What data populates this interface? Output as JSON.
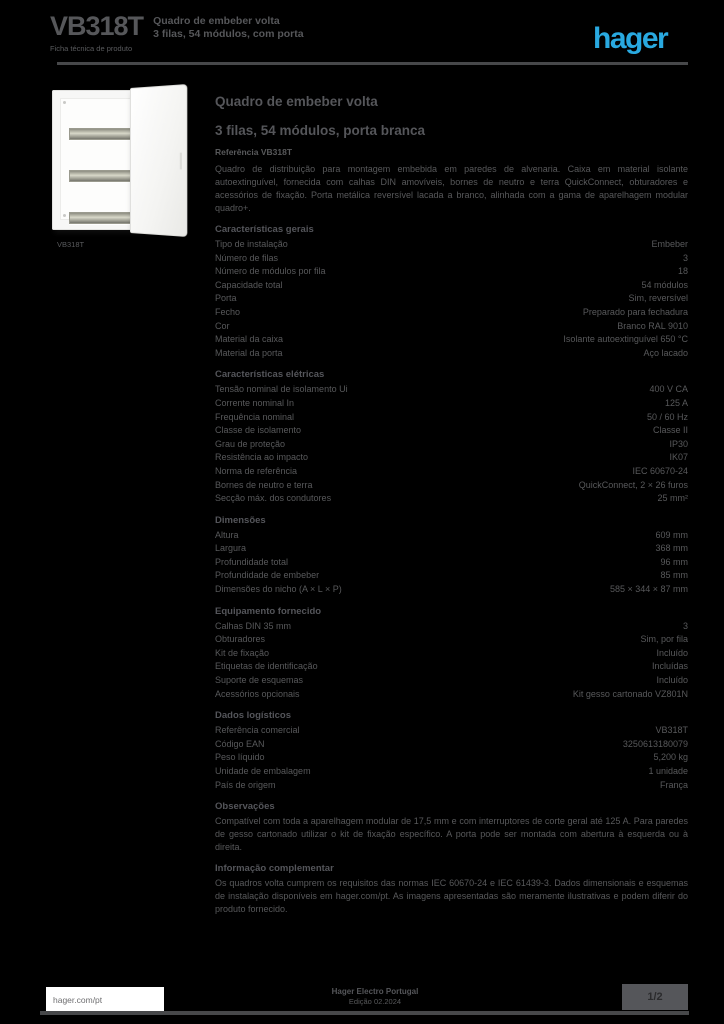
{
  "header": {
    "ref": "VB318T",
    "subtitle_line1": "Quadro de embeber volta",
    "subtitle_line2": "3 filas, 54 módulos, com porta",
    "doc_type": "Ficha técnica de produto"
  },
  "logo": {
    "text": "hager",
    "color": "#29a9e0"
  },
  "photo": {
    "caption": "VB318T"
  },
  "product": {
    "title": "Quadro de embeber volta",
    "title2": "3 filas, 54 módulos, porta branca",
    "ref_line": "Referência VB318T",
    "description": "Quadro de distribuição para montagem embebida em paredes de alvenaria. Caixa em material isolante autoextinguível, fornecida com calhas DIN amovíveis, bornes de neutro e terra QuickConnect, obturadores e acessórios de fixação. Porta metálica reversível lacada a branco, alinhada com a gama de aparelhagem modular quadro+."
  },
  "sections": [
    {
      "heading": "Características gerais",
      "rows": [
        {
          "label": "Tipo de instalação",
          "value": "Embeber"
        },
        {
          "label": "Número de filas",
          "value": "3"
        },
        {
          "label": "Número de módulos por fila",
          "value": "18"
        },
        {
          "label": "Capacidade total",
          "value": "54 módulos"
        },
        {
          "label": "Porta",
          "value": "Sim, reversível"
        },
        {
          "label": "Fecho",
          "value": "Preparado para fechadura"
        },
        {
          "label": "Cor",
          "value": "Branco RAL 9010"
        },
        {
          "label": "Material da caixa",
          "value": "Isolante autoextinguível 650 °C"
        },
        {
          "label": "Material da porta",
          "value": "Aço lacado"
        }
      ]
    },
    {
      "heading": "Características elétricas",
      "rows": [
        {
          "label": "Tensão nominal de isolamento Ui",
          "value": "400 V CA"
        },
        {
          "label": "Corrente nominal In",
          "value": "125 A"
        },
        {
          "label": "Frequência nominal",
          "value": "50 / 60 Hz"
        },
        {
          "label": "Classe de isolamento",
          "value": "Classe II"
        },
        {
          "label": "Grau de proteção",
          "value": "IP30"
        },
        {
          "label": "Resistência ao impacto",
          "value": "IK07"
        },
        {
          "label": "Norma de referência",
          "value": "IEC 60670-24"
        },
        {
          "label": "Bornes de neutro e terra",
          "value": "QuickConnect, 2 × 26 furos"
        },
        {
          "label": "Secção máx. dos condutores",
          "value": "25 mm²"
        }
      ]
    },
    {
      "heading": "Dimensões",
      "rows": [
        {
          "label": "Altura",
          "value": "609 mm"
        },
        {
          "label": "Largura",
          "value": "368 mm"
        },
        {
          "label": "Profundidade total",
          "value": "96 mm"
        },
        {
          "label": "Profundidade de embeber",
          "value": "85 mm"
        },
        {
          "label": "Dimensões do nicho (A × L × P)",
          "value": "585 × 344 × 87 mm"
        }
      ]
    },
    {
      "heading": "Equipamento fornecido",
      "rows": [
        {
          "label": "Calhas DIN 35 mm",
          "value": "3"
        },
        {
          "label": "Obturadores",
          "value": "Sim, por fila"
        },
        {
          "label": "Kit de fixação",
          "value": "Incluído"
        },
        {
          "label": "Etiquetas de identificação",
          "value": "Incluídas"
        },
        {
          "label": "Suporte de esquemas",
          "value": "Incluído"
        },
        {
          "label": "Acessórios opcionais",
          "value": "Kit gesso cartonado VZ801N"
        }
      ]
    },
    {
      "heading": "Dados logísticos",
      "rows": [
        {
          "label": "Referência comercial",
          "value": "VB318T"
        },
        {
          "label": "Código EAN",
          "value": "3250613180079"
        },
        {
          "label": "Peso líquido",
          "value": "5,200 kg"
        },
        {
          "label": "Unidade de embalagem",
          "value": "1 unidade"
        },
        {
          "label": "País de origem",
          "value": "França"
        }
      ]
    },
    {
      "heading": "Observações",
      "text": "Compatível com toda a aparelhagem modular de 17,5 mm e com interruptores de corte geral até 125 A. Para paredes de gesso cartonado utilizar o kit de fixação específico. A porta pode ser montada com abertura à esquerda ou à direita."
    },
    {
      "heading": "Informação complementar",
      "text": "Os quadros volta cumprem os requisitos das normas IEC 60670-24 e IEC 61439-3. Dados dimensionais e esquemas de instalação disponíveis em hager.com/pt. As imagens apresentadas são meramente ilustrativas e podem diferir do produto fornecido."
    }
  ],
  "footer": {
    "site": "hager.com/pt",
    "note_line1": "Hager Electro Portugal",
    "note_line2": "Edição 02.2024",
    "page": "1/2"
  }
}
